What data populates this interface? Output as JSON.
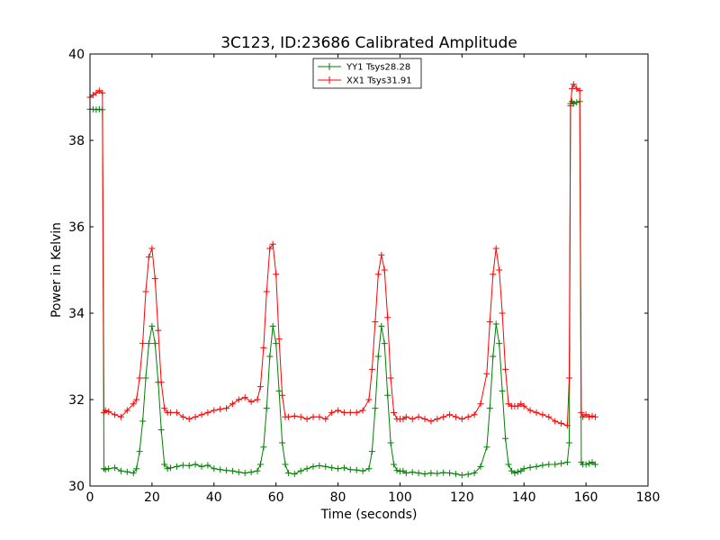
{
  "chart_data": {
    "type": "line",
    "title": "3C123, ID:23686 Calibrated Amplitude",
    "xlabel": "Time (seconds)",
    "ylabel": "Power in Kelvin",
    "xlim": [
      0,
      180
    ],
    "ylim": [
      30,
      40
    ],
    "xticks": [
      "0",
      "20",
      "40",
      "60",
      "80",
      "100",
      "120",
      "140",
      "160",
      "180"
    ],
    "yticks": [
      "30",
      "32",
      "34",
      "36",
      "38",
      "40"
    ],
    "grid": false,
    "legend_position": "top-center",
    "marker": "+",
    "series": [
      {
        "name": "YY1 Tsys28.28",
        "color": "#008000",
        "x": [
          0,
          1,
          2,
          3,
          4,
          4.5,
          5,
          6,
          8,
          10,
          12,
          14,
          15,
          16,
          17,
          18,
          19,
          20,
          21,
          22,
          23,
          24,
          25,
          26,
          28,
          30,
          32,
          34,
          36,
          38,
          40,
          42,
          44,
          46,
          48,
          50,
          52,
          54,
          55,
          56,
          57,
          58,
          59,
          60,
          61,
          62,
          63,
          64,
          66,
          68,
          70,
          72,
          74,
          76,
          78,
          80,
          82,
          84,
          86,
          88,
          90,
          91,
          92,
          93,
          94,
          95,
          96,
          97,
          98,
          99,
          100,
          101,
          102,
          104,
          106,
          108,
          110,
          112,
          114,
          116,
          118,
          120,
          122,
          124,
          126,
          128,
          129,
          130,
          131,
          132,
          133,
          134,
          135,
          136,
          137,
          138,
          139,
          140,
          142,
          144,
          146,
          148,
          150,
          152,
          154,
          154.6,
          155,
          155.5,
          156,
          157,
          158,
          158.5,
          159,
          160,
          161,
          162,
          163
        ],
        "y": [
          38.72,
          38.72,
          38.71,
          38.72,
          38.71,
          30.4,
          30.38,
          30.4,
          30.42,
          30.35,
          30.33,
          30.3,
          30.4,
          30.8,
          31.5,
          32.5,
          33.3,
          33.7,
          33.3,
          32.4,
          31.3,
          30.5,
          30.4,
          30.42,
          30.45,
          30.48,
          30.47,
          30.5,
          30.45,
          30.48,
          30.4,
          30.38,
          30.36,
          30.35,
          30.32,
          30.3,
          30.32,
          30.35,
          30.5,
          30.9,
          31.8,
          33.0,
          33.7,
          33.3,
          32.2,
          31.0,
          30.5,
          30.3,
          30.28,
          30.35,
          30.4,
          30.45,
          30.47,
          30.45,
          30.42,
          30.4,
          30.42,
          30.38,
          30.37,
          30.35,
          30.4,
          30.8,
          31.8,
          33.0,
          33.7,
          33.3,
          32.1,
          31.0,
          30.5,
          30.36,
          30.34,
          30.35,
          30.3,
          30.32,
          30.3,
          30.28,
          30.3,
          30.29,
          30.31,
          30.3,
          30.28,
          30.25,
          30.27,
          30.3,
          30.45,
          30.9,
          31.8,
          33.0,
          33.75,
          33.3,
          32.2,
          31.1,
          30.5,
          30.35,
          30.3,
          30.33,
          30.35,
          30.4,
          30.43,
          30.45,
          30.48,
          30.5,
          30.5,
          30.52,
          30.55,
          31.0,
          38.85,
          38.9,
          38.85,
          38.88,
          38.9,
          30.55,
          30.5,
          30.5,
          30.52,
          30.55,
          30.5
        ]
      },
      {
        "name": "XX1 Tsys31.91",
        "color": "#ff0000",
        "x": [
          0,
          1,
          2,
          3,
          4,
          4.5,
          5,
          6,
          8,
          10,
          12,
          14,
          15,
          16,
          17,
          18,
          19,
          20,
          21,
          22,
          23,
          24,
          25,
          26,
          28,
          30,
          32,
          34,
          36,
          38,
          40,
          42,
          44,
          46,
          48,
          50,
          52,
          54,
          55,
          56,
          57,
          58,
          59,
          60,
          61,
          62,
          63,
          64,
          66,
          68,
          70,
          72,
          74,
          76,
          78,
          80,
          82,
          84,
          86,
          88,
          90,
          91,
          92,
          93,
          94,
          95,
          96,
          97,
          98,
          99,
          100,
          101,
          102,
          104,
          106,
          108,
          110,
          112,
          114,
          116,
          118,
          120,
          122,
          124,
          126,
          128,
          129,
          130,
          131,
          132,
          133,
          134,
          135,
          136,
          137,
          138,
          139,
          140,
          142,
          144,
          146,
          148,
          150,
          152,
          154,
          154.6,
          155,
          155.5,
          156,
          157,
          158,
          158.5,
          159,
          160,
          161,
          162,
          163
        ],
        "y": [
          39.0,
          39.05,
          39.1,
          39.15,
          39.1,
          31.7,
          31.75,
          31.72,
          31.65,
          31.6,
          31.75,
          31.9,
          32.0,
          32.5,
          33.3,
          34.5,
          35.3,
          35.5,
          34.8,
          33.6,
          32.4,
          31.8,
          31.7,
          31.7,
          31.7,
          31.6,
          31.55,
          31.6,
          31.65,
          31.7,
          31.75,
          31.78,
          31.8,
          31.9,
          32.0,
          32.05,
          31.95,
          32.0,
          32.3,
          33.2,
          34.5,
          35.5,
          35.6,
          34.9,
          33.4,
          32.1,
          31.6,
          31.6,
          31.62,
          31.6,
          31.55,
          31.6,
          31.6,
          31.55,
          31.7,
          31.75,
          31.7,
          31.7,
          31.7,
          31.75,
          32.0,
          32.7,
          33.8,
          34.9,
          35.35,
          35.0,
          33.9,
          32.5,
          31.7,
          31.55,
          31.55,
          31.55,
          31.6,
          31.55,
          31.6,
          31.55,
          31.5,
          31.55,
          31.6,
          31.65,
          31.6,
          31.55,
          31.6,
          31.65,
          31.9,
          32.6,
          33.8,
          34.9,
          35.5,
          35.0,
          34.0,
          32.7,
          31.9,
          31.85,
          31.85,
          31.85,
          31.9,
          31.85,
          31.75,
          31.7,
          31.65,
          31.6,
          31.5,
          31.45,
          31.4,
          32.5,
          38.8,
          39.2,
          39.3,
          39.2,
          39.15,
          31.7,
          31.6,
          31.65,
          31.6,
          31.62,
          31.6
        ]
      }
    ]
  }
}
